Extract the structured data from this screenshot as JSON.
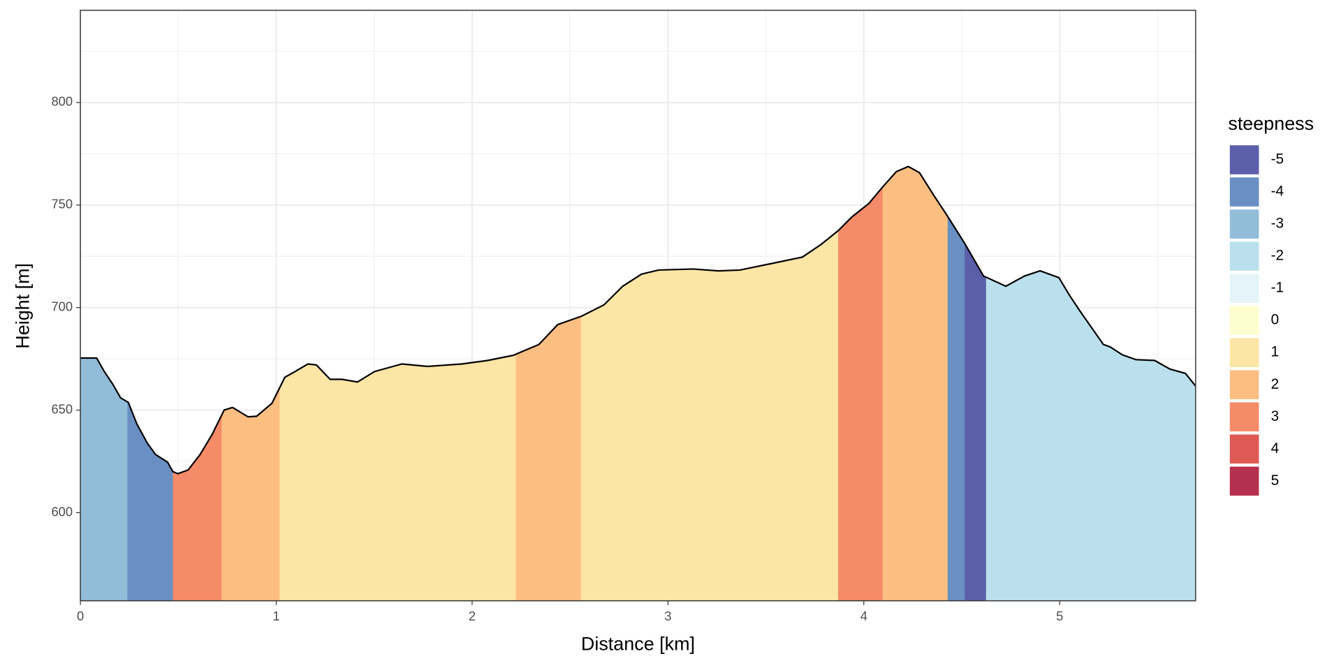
{
  "chart_data": {
    "type": "area",
    "x_label": "Distance [km]",
    "y_label": "Height [m]",
    "x": [
      0,
      0.083,
      0.122,
      0.166,
      0.205,
      0.245,
      0.288,
      0.341,
      0.384,
      0.445,
      0.472,
      0.498,
      0.55,
      0.611,
      0.672,
      0.734,
      0.777,
      0.856,
      0.9,
      0.978,
      1.044,
      1.096,
      1.162,
      1.205,
      1.275,
      1.336,
      1.415,
      1.502,
      1.642,
      1.773,
      1.948,
      2.079,
      2.21,
      2.341,
      2.437,
      2.559,
      2.673,
      2.769,
      2.865,
      2.952,
      3.127,
      3.258,
      3.367,
      3.52,
      3.686,
      3.782,
      3.869,
      3.939,
      4.026,
      4.096,
      4.166,
      4.227,
      4.284,
      4.358,
      4.419,
      4.515,
      4.611,
      4.725,
      4.821,
      4.9,
      4.996,
      5.048,
      5.1,
      5.223,
      5.258,
      5.319,
      5.389,
      5.485,
      5.563,
      5.642,
      5.694
    ],
    "values": [
      675.4,
      675.4,
      668.8,
      662.5,
      656,
      653.7,
      643.3,
      634,
      628.3,
      624.6,
      620,
      619,
      620.8,
      628.3,
      638,
      650,
      651.3,
      646.7,
      647,
      653.3,
      666,
      668.8,
      672.5,
      672,
      665,
      665,
      663.7,
      668.8,
      672.5,
      671.3,
      672.5,
      674.2,
      676.7,
      682,
      691.7,
      695.8,
      701.3,
      710.4,
      716.3,
      718.3,
      718.8,
      717.9,
      718.3,
      721.3,
      724.6,
      730.8,
      737.5,
      744.2,
      750.8,
      758.8,
      766.3,
      768.8,
      765.8,
      754.6,
      745.8,
      731.3,
      715.4,
      710.4,
      715.4,
      717.9,
      714.6,
      706.3,
      698.8,
      682,
      680.8,
      677,
      674.6,
      674.2,
      670,
      667.9,
      661.7
    ],
    "segments": [
      {
        "from": 0,
        "to": 0.24,
        "steepness": -3
      },
      {
        "from": 0.24,
        "to": 0.472,
        "steepness": -4
      },
      {
        "from": 0.472,
        "to": 0.721,
        "steepness": 3
      },
      {
        "from": 0.721,
        "to": 1.017,
        "steepness": 2
      },
      {
        "from": 1.017,
        "to": 2.223,
        "steepness": 1
      },
      {
        "from": 2.223,
        "to": 2.555,
        "steepness": 2
      },
      {
        "from": 2.555,
        "to": 3.869,
        "steepness": 1
      },
      {
        "from": 3.869,
        "to": 4.096,
        "steepness": 3
      },
      {
        "from": 4.096,
        "to": 4.428,
        "steepness": 2
      },
      {
        "from": 4.428,
        "to": 4.515,
        "steepness": -4
      },
      {
        "from": 4.515,
        "to": 4.624,
        "steepness": -5
      },
      {
        "from": 4.624,
        "to": 5.694,
        "steepness": -2
      }
    ],
    "legend": {
      "title": "steepness",
      "items": [
        {
          "label": -5,
          "color": "#5b5ea8"
        },
        {
          "label": -4,
          "color": "#6a8fc2"
        },
        {
          "label": -3,
          "color": "#92bdd9"
        },
        {
          "label": -2,
          "color": "#bbe0ed"
        },
        {
          "label": -1,
          "color": "#e4f4f8"
        },
        {
          "label": 0,
          "color": "#fefdd0"
        },
        {
          "label": 1,
          "color": "#fde5a6"
        },
        {
          "label": 2,
          "color": "#fdbe82"
        },
        {
          "label": 3,
          "color": "#f58b69"
        },
        {
          "label": 4,
          "color": "#e05a55"
        },
        {
          "label": 5,
          "color": "#b5304e"
        }
      ]
    },
    "xlim": [
      0,
      5.694
    ],
    "ylim": [
      557,
      845
    ],
    "xticks": [
      0,
      1,
      2,
      3,
      4,
      5
    ],
    "yticks": [
      600,
      650,
      700,
      750,
      800
    ],
    "grid": true
  }
}
